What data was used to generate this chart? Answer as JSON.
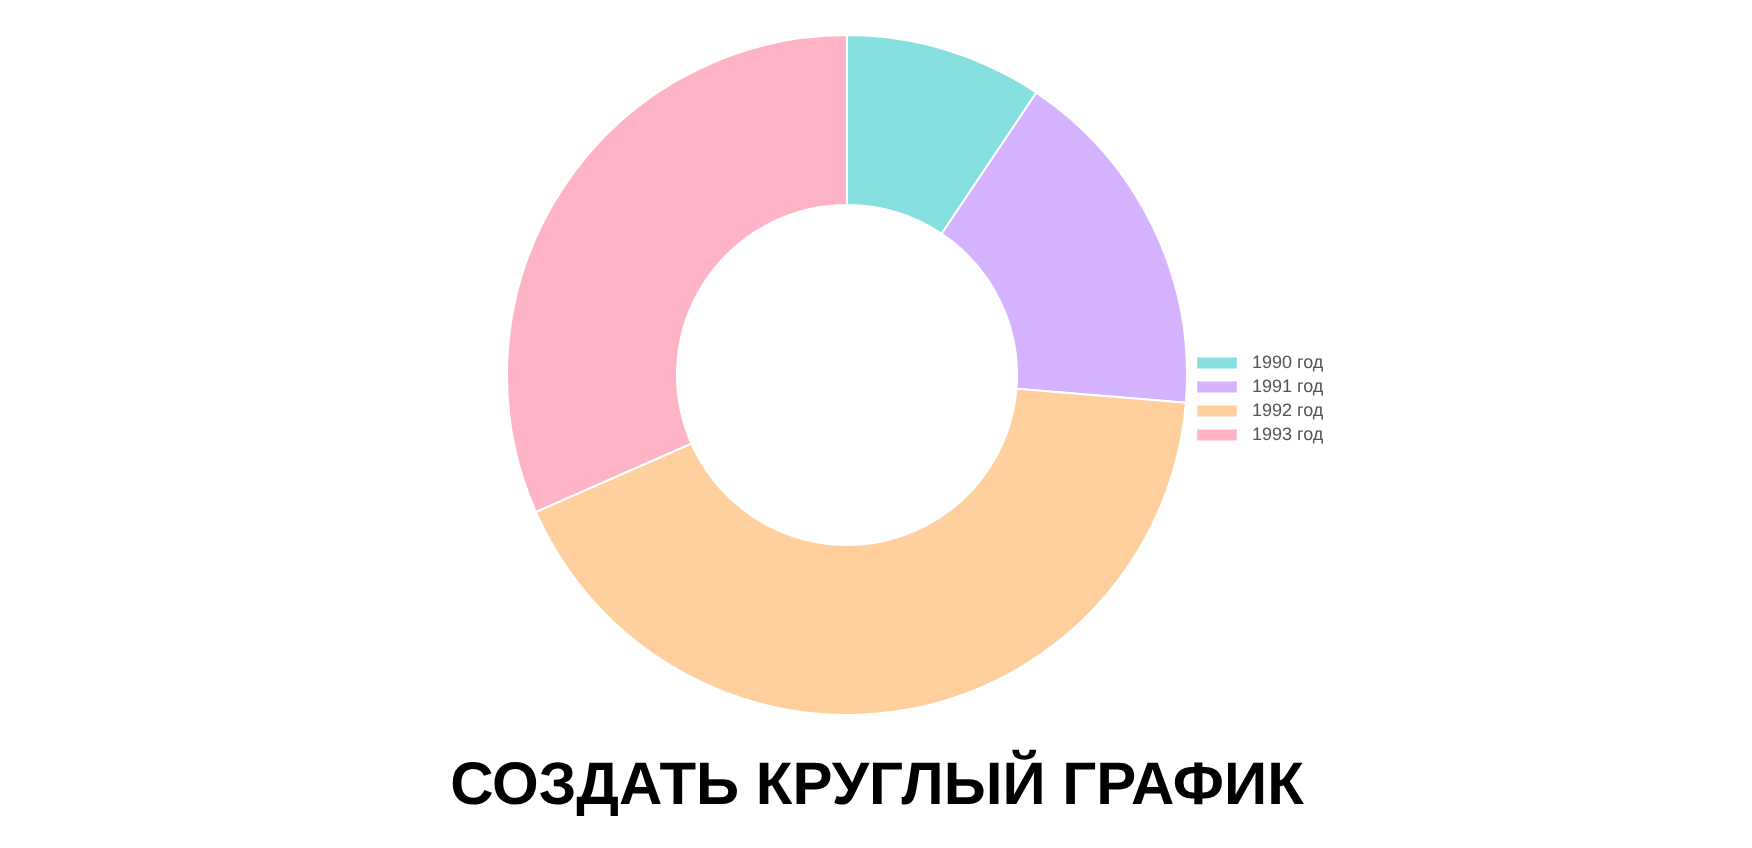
{
  "chart_data": {
    "type": "donut",
    "title": "СОЗДАТЬ КРУГЛЫЙ ГРАФИК",
    "categories": [
      "1990 год",
      "1991 год",
      "1992 год",
      "1993 год"
    ],
    "values": [
      9.4,
      16.9,
      42.1,
      31.6
    ],
    "colors": [
      "#87e0e0",
      "#d5b3ff",
      "#ffd09e",
      "#ffb3c6"
    ],
    "legend": "right"
  }
}
